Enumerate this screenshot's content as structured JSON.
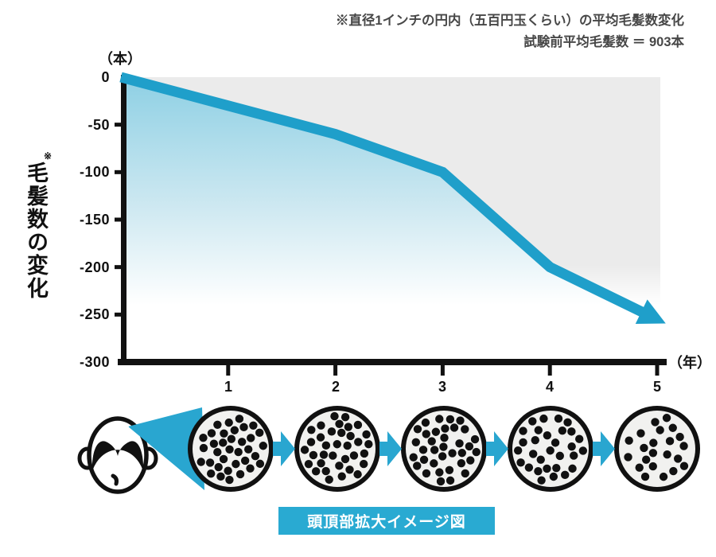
{
  "title": {
    "line1": "※直径1インチの円内（五百円玉くらい）の平均毛髪数変化",
    "line2": "試験前平均毛髪数 ＝ 903本"
  },
  "chart_data": {
    "type": "line",
    "x": [
      0,
      1,
      2,
      3,
      4,
      5
    ],
    "values": [
      0,
      -30,
      -60,
      -100,
      -200,
      -255
    ],
    "series": [
      {
        "name": "毛髪数の変化",
        "values": [
          0,
          -30,
          -60,
          -100,
          -200,
          -255
        ]
      }
    ],
    "title": "※直径1インチの円内（五百円玉くらい）の平均毛髪数変化",
    "subtitle": "試験前平均毛髪数 ＝ 903本",
    "ylabel": "毛髪数の変化",
    "ylabel_note": "※",
    "y_unit": "（本）",
    "x_unit": "（年）",
    "xlabel": "年",
    "ylim": [
      -300,
      0
    ],
    "xlim": [
      0,
      5
    ],
    "yticks": [
      "0",
      "-50",
      "-100",
      "-150",
      "-200",
      "-250",
      "-300"
    ],
    "xticks": [
      "1",
      "2",
      "3",
      "4",
      "5"
    ],
    "grid": false,
    "legend": "none",
    "line_color": "#1f9fca",
    "area_top_color": "#8ed0e4",
    "plot_bg_color": "#ebebeb",
    "axis_color": "#111111"
  },
  "illustration": {
    "caption": "頭頂部拡大イメージ図",
    "caption_bg": "#29aad2",
    "arrow_color": "#29a6d0",
    "cone_color": "#29a6d0",
    "scalp_dot_counts": [
      55,
      46,
      38,
      30,
      22
    ],
    "dot_color": "#111111",
    "scalp_fill": "#f1f1ef"
  }
}
